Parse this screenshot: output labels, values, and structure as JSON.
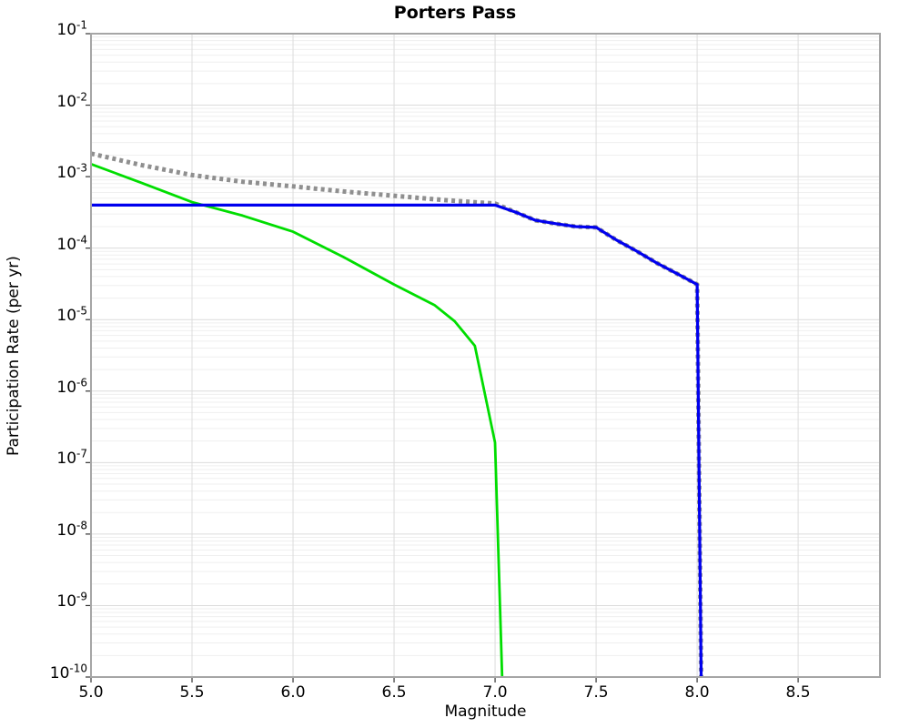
{
  "title": "Porters Pass",
  "axes": {
    "xlabel": "Magnitude",
    "ylabel": "Participation Rate (per yr)",
    "x_ticks": [
      {
        "value": 5.0,
        "label": "5.0"
      },
      {
        "value": 5.5,
        "label": "5.5"
      },
      {
        "value": 6.0,
        "label": "6.0"
      },
      {
        "value": 6.5,
        "label": "6.5"
      },
      {
        "value": 7.0,
        "label": "7.0"
      },
      {
        "value": 7.5,
        "label": "7.5"
      },
      {
        "value": 8.0,
        "label": "8.0"
      },
      {
        "value": 8.5,
        "label": "8.5"
      }
    ],
    "y_tick_base": "10",
    "y_tick_exponents": [
      "-1",
      "-2",
      "-3",
      "-4",
      "-5",
      "-6",
      "-7",
      "-8",
      "-9",
      "-10"
    ]
  },
  "chart_data": {
    "type": "line",
    "title": "Porters Pass",
    "xlabel": "Magnitude",
    "ylabel": "Participation Rate (per yr)",
    "xlim": [
      5.0,
      8.905
    ],
    "ylim": [
      1e-10,
      0.1
    ],
    "yscale": "log",
    "grid": true,
    "legend": false,
    "series": [
      {
        "name": "gray-dotted-rate",
        "color": "#8f8f8f",
        "style": "dotted",
        "width": 5,
        "points": [
          [
            5.0,
            0.0021
          ],
          [
            5.25,
            0.00145
          ],
          [
            5.5,
            0.00105
          ],
          [
            5.75,
            0.00085
          ],
          [
            6.0,
            0.00073
          ],
          [
            6.25,
            0.00062
          ],
          [
            6.5,
            0.00054
          ],
          [
            6.75,
            0.00047
          ],
          [
            7.0,
            0.00042
          ],
          [
            7.1,
            0.00032
          ],
          [
            7.2,
            0.000245
          ],
          [
            7.3,
            0.00022
          ],
          [
            7.4,
            0.0002
          ],
          [
            7.5,
            0.000195
          ],
          [
            7.6,
            0.00013
          ],
          [
            7.7,
            9.1e-05
          ],
          [
            7.8,
            6.2e-05
          ],
          [
            7.9,
            4.4e-05
          ],
          [
            8.0,
            3.1e-05
          ],
          [
            8.02,
            1e-10
          ]
        ]
      },
      {
        "name": "green-solid-rate",
        "color": "#00dd00",
        "style": "solid",
        "width": 2.8,
        "points": [
          [
            5.0,
            0.0015
          ],
          [
            5.25,
            0.00082
          ],
          [
            5.5,
            0.00044
          ],
          [
            5.75,
            0.000285
          ],
          [
            6.0,
            0.00017
          ],
          [
            6.25,
            7.5e-05
          ],
          [
            6.5,
            3.1e-05
          ],
          [
            6.7,
            1.6e-05
          ],
          [
            6.8,
            9.5e-06
          ],
          [
            6.9,
            4.3e-06
          ],
          [
            7.0,
            1.9e-07
          ],
          [
            7.035,
            1e-10
          ]
        ]
      },
      {
        "name": "blue-solid-rate",
        "color": "#0000ee",
        "style": "solid",
        "width": 3.2,
        "points": [
          [
            5.0,
            0.0004
          ],
          [
            7.0,
            0.0004
          ],
          [
            7.1,
            0.00032
          ],
          [
            7.2,
            0.000245
          ],
          [
            7.3,
            0.00022
          ],
          [
            7.4,
            0.0002
          ],
          [
            7.5,
            0.000195
          ],
          [
            7.6,
            0.00013
          ],
          [
            7.7,
            9.1e-05
          ],
          [
            7.8,
            6.2e-05
          ],
          [
            7.9,
            4.4e-05
          ],
          [
            8.0,
            3.1e-05
          ],
          [
            8.02,
            1e-10
          ]
        ]
      }
    ]
  }
}
